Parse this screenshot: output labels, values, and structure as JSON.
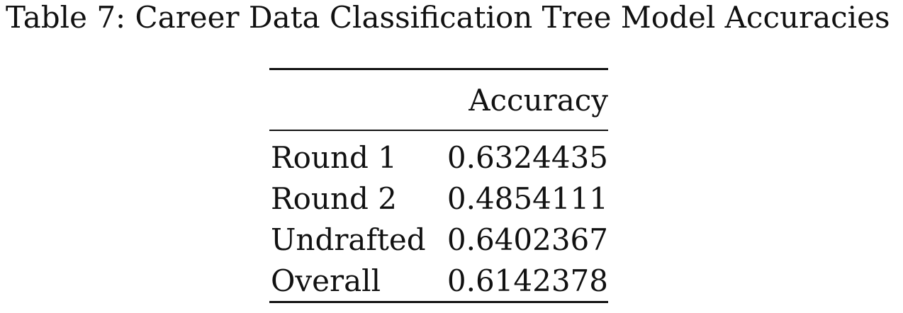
{
  "caption": "Table 7: Career Data Classification Tree Model Accuracies",
  "table": {
    "header": {
      "row_label": "",
      "column": "Accuracy"
    },
    "rows": [
      {
        "label": "Round 1",
        "value": "0.6324435"
      },
      {
        "label": "Round 2",
        "value": "0.4854111"
      },
      {
        "label": "Undrafted",
        "value": "0.6402367"
      },
      {
        "label": "Overall",
        "value": "0.6142378"
      }
    ]
  }
}
